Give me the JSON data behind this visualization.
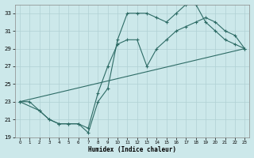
{
  "xlabel": "Humidex (Indice chaleur)",
  "bg_color": "#cce8ea",
  "grid_color": "#b0d0d4",
  "line_color": "#2d6b65",
  "xlim": [
    -0.5,
    23.5
  ],
  "ylim": [
    19,
    34
  ],
  "yticks": [
    19,
    21,
    23,
    25,
    27,
    29,
    31,
    33
  ],
  "xticks": [
    0,
    1,
    2,
    3,
    4,
    5,
    6,
    7,
    8,
    9,
    10,
    11,
    12,
    13,
    14,
    15,
    16,
    17,
    18,
    19,
    20,
    21,
    22,
    23
  ],
  "line1_x": [
    0,
    1,
    2,
    3,
    4,
    5,
    6,
    7,
    8,
    9,
    10,
    11,
    12,
    13,
    14,
    15,
    16,
    17,
    18,
    19,
    20,
    21,
    22,
    23
  ],
  "line1_y": [
    23,
    23,
    22,
    21,
    20.5,
    20.5,
    20.5,
    19.5,
    23,
    24.5,
    30,
    33,
    33,
    33,
    32.5,
    32,
    33,
    34,
    34,
    32,
    31,
    30,
    29.5,
    29
  ],
  "line2_x": [
    0,
    2,
    3,
    4,
    5,
    6,
    7,
    8,
    9,
    10,
    11,
    12,
    13,
    14,
    15,
    16,
    17,
    18,
    19,
    20,
    21,
    22,
    23
  ],
  "line2_y": [
    23,
    22,
    21,
    20.5,
    20.5,
    20.5,
    20,
    24,
    27,
    29.5,
    30,
    30,
    27,
    29,
    30,
    31,
    31.5,
    32,
    32.5,
    32,
    31,
    30.5,
    29
  ],
  "line3_x": [
    0,
    23
  ],
  "line3_y": [
    23,
    29
  ]
}
